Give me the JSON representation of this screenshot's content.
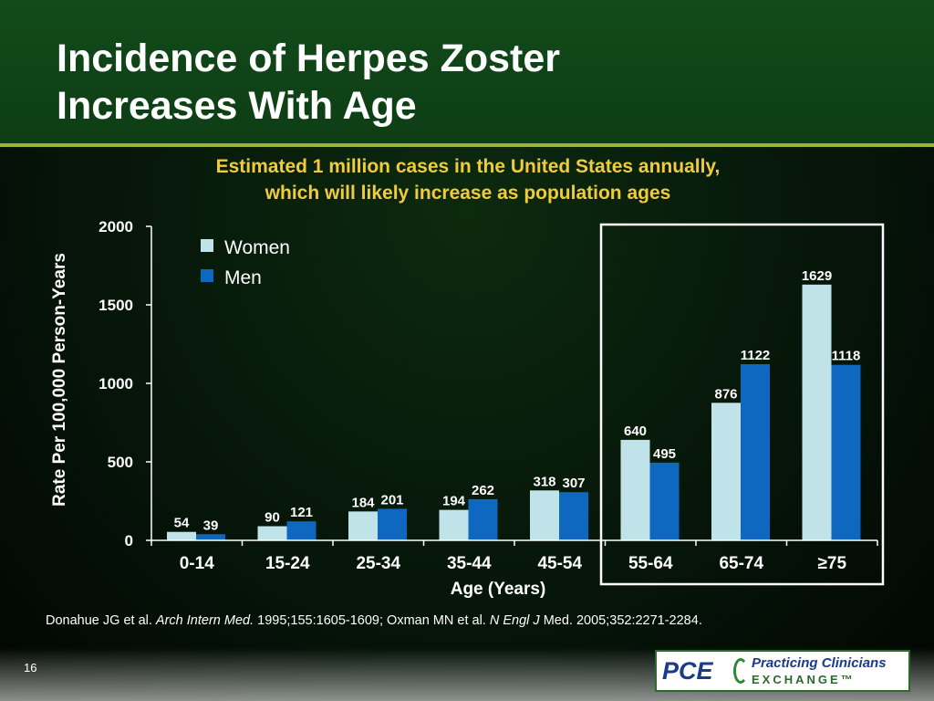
{
  "slide": {
    "title_line1": "Incidence of Herpes Zoster",
    "title_line2": "Increases With Age",
    "subtitle_line1": "Estimated 1 million cases in the United States annually,",
    "subtitle_line2": "which will likely increase as population ages",
    "citation": {
      "part1": "Donahue JG et al. ",
      "journal1": "Arch Intern Med.",
      "part2": " 1995;155:1605-1609; Oxman MN et al. ",
      "journal2": "N Engl J",
      "part3": " Med. 2005;352:2271-2284."
    },
    "page_number": "16",
    "logo": {
      "mark": "PCE",
      "name": "Practicing Clinicians",
      "sub": "EXCHANGE™"
    }
  },
  "colors": {
    "women": "#bfe3e8",
    "men": "#0f68c0",
    "highlight_frame": "#ffffff"
  },
  "chart_data": {
    "type": "bar",
    "categories": [
      "0-14",
      "15-24",
      "25-34",
      "35-44",
      "45-54",
      "55-64",
      "65-74",
      "≥75"
    ],
    "series": [
      {
        "name": "Women",
        "values": [
          54,
          90,
          184,
          194,
          318,
          640,
          876,
          1629
        ]
      },
      {
        "name": "Men",
        "values": [
          39,
          121,
          201,
          262,
          307,
          495,
          1122,
          1118
        ]
      }
    ],
    "xlabel": "Age (Years)",
    "ylabel": "Rate Per 100,000 Person-Years",
    "ylim": [
      0,
      2000
    ],
    "yticks": [
      0,
      500,
      1000,
      1500,
      2000
    ],
    "grid": false,
    "legend": "top-left",
    "highlighted_categories": [
      "55-64",
      "65-74",
      "≥75"
    ]
  }
}
